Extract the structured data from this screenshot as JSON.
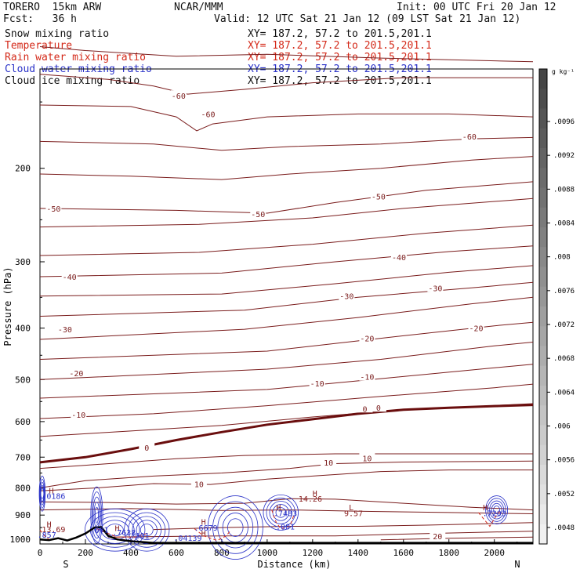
{
  "header": {
    "model": "TORERO  15km ARW",
    "org": "NCAR/MMM",
    "init": "Init: 00 UTC Fri 20 Jan 12",
    "fcst": "Fcst:   36 h",
    "valid": "Valid: 12 UTC Sat 21 Jan 12 (09 LST Sat 21 Jan 12)"
  },
  "fields": [
    {
      "name": "Snow mixing ratio",
      "xy": "XY= 187.2, 57.2 to 201.5,201.1",
      "color": "#111111"
    },
    {
      "name": "Temperature",
      "xy": "XY= 187.2, 57.2 to 201.5,201.1",
      "color": "#d42a1a"
    },
    {
      "name": "Rain water mixing ratio",
      "xy": "XY= 187.2, 57.2 to 201.5,201.1",
      "color": "#d42a1a"
    },
    {
      "name": "Cloud water mixing ratio",
      "xy": "XY= 187.2, 57.2 to 201.5,201.1",
      "color": "#2a32c8"
    },
    {
      "name": "Cloud ice mixing ratio",
      "xy": "XY= 187.2, 57.2 to 201.5,201.1",
      "color": "#111111"
    }
  ],
  "colorbar": {
    "unit": "g kg⁻¹",
    "labels": [
      ".0096",
      ".0092",
      ".0088",
      ".0084",
      ".008",
      ".0076",
      ".0072",
      ".0068",
      ".0064",
      ".006",
      ".0056",
      ".0052",
      ".0048"
    ]
  },
  "chart_data": {
    "type": "contour-cross-section",
    "xlabel": "Distance (km)",
    "ylabel": "Pressure (hPa)",
    "x_ticks": [
      0,
      200,
      400,
      600,
      800,
      1000,
      1200,
      1400,
      1600,
      1800,
      2000
    ],
    "xlim": [
      0,
      2170
    ],
    "y_ticks": [
      200,
      300,
      400,
      500,
      600,
      700,
      800,
      900,
      1000
    ],
    "ylim": [
      1020,
      130
    ],
    "y_scale": "log",
    "end_labels": {
      "left": "S",
      "right": "N"
    },
    "temperature_contours_C": [
      -60,
      -50,
      -40,
      -30,
      -20,
      -10,
      0,
      10,
      20
    ],
    "temperature_labels": [
      {
        "text": "-60",
        "x": 610,
        "p": 146
      },
      {
        "text": "-60",
        "x": 740,
        "p": 158
      },
      {
        "text": "-60",
        "x": 1890,
        "p": 174
      },
      {
        "text": "-50",
        "x": 60,
        "p": 238
      },
      {
        "text": "-50",
        "x": 960,
        "p": 244
      },
      {
        "text": "-50",
        "x": 1490,
        "p": 226
      },
      {
        "text": "-40",
        "x": 130,
        "p": 320
      },
      {
        "text": "-40",
        "x": 1580,
        "p": 294
      },
      {
        "text": "-30",
        "x": 110,
        "p": 402
      },
      {
        "text": "-30",
        "x": 1350,
        "p": 348
      },
      {
        "text": "-30",
        "x": 1740,
        "p": 336
      },
      {
        "text": "-20",
        "x": 160,
        "p": 486
      },
      {
        "text": "-20",
        "x": 1440,
        "p": 418
      },
      {
        "text": "-20",
        "x": 1920,
        "p": 400
      },
      {
        "text": "-10",
        "x": 170,
        "p": 582
      },
      {
        "text": "-10",
        "x": 1220,
        "p": 508
      },
      {
        "text": "-10",
        "x": 1440,
        "p": 494
      },
      {
        "text": "0",
        "x": 470,
        "p": 672
      },
      {
        "text": "0",
        "x": 1430,
        "p": 567
      },
      {
        "text": "0",
        "x": 1490,
        "p": 565
      },
      {
        "text": "10",
        "x": 700,
        "p": 787
      },
      {
        "text": "10",
        "x": 1270,
        "p": 716
      },
      {
        "text": "10",
        "x": 1440,
        "p": 703
      },
      {
        "text": "20",
        "x": 1750,
        "p": 986
      }
    ],
    "extrema": [
      {
        "text": "H",
        "x": 50,
        "p": 808
      },
      {
        "text": ".0186",
        "x": 60,
        "p": 827
      },
      {
        "text": "H",
        "x": 40,
        "p": 935
      },
      {
        "text": "13.69",
        "x": 60,
        "p": 957
      },
      {
        "text": ".857",
        "x": 30,
        "p": 980
      },
      {
        "text": ".001",
        "x": 260,
        "p": 958
      },
      {
        "text": "H",
        "x": 340,
        "p": 952
      },
      {
        "text": ".7638",
        "x": 370,
        "p": 970
      },
      {
        "text": ".001",
        "x": 440,
        "p": 983
      },
      {
        "text": "H",
        "x": 720,
        "p": 926
      },
      {
        "text": ".6679",
        "x": 730,
        "p": 950
      },
      {
        "text": "H",
        "x": 720,
        "p": 972
      },
      {
        "text": ".04139",
        "x": 650,
        "p": 992
      },
      {
        "text": "H",
        "x": 1210,
        "p": 818
      },
      {
        "text": "14.26",
        "x": 1190,
        "p": 838
      },
      {
        "text": "H",
        "x": 1050,
        "p": 870
      },
      {
        "text": ".7483",
        "x": 1080,
        "p": 892
      },
      {
        "text": ".001",
        "x": 1080,
        "p": 945
      },
      {
        "text": "L",
        "x": 1370,
        "p": 870
      },
      {
        "text": "9.57",
        "x": 1380,
        "p": 892
      },
      {
        "text": "H",
        "x": 1960,
        "p": 870
      },
      {
        "text": ".7203",
        "x": 2000,
        "p": 892
      }
    ],
    "colors": {
      "temperature": "#7a1c1c",
      "zero_isotherm": "#6a0e0e",
      "cloud_water": "#2a32c8",
      "rain_water": "#d42a1a",
      "terrain": "#000000"
    }
  }
}
